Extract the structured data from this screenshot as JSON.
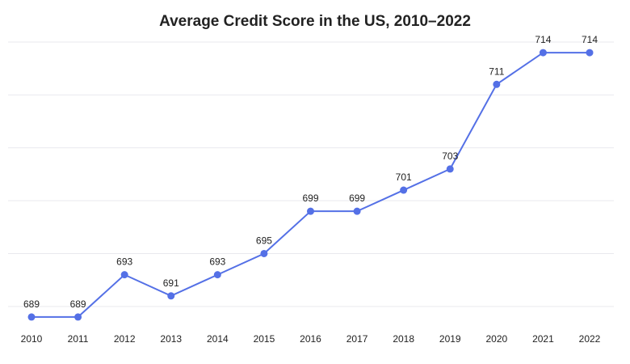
{
  "chart_data": {
    "type": "line",
    "title": "Average Credit Score in the US, 2010–2022",
    "xlabel": "",
    "ylabel": "",
    "categories": [
      "2010",
      "2011",
      "2012",
      "2013",
      "2014",
      "2015",
      "2016",
      "2017",
      "2018",
      "2019",
      "2020",
      "2021",
      "2022"
    ],
    "series": [
      {
        "values": [
          689,
          689,
          693,
          691,
          693,
          695,
          699,
          699,
          701,
          703,
          711,
          714,
          714
        ],
        "color": "#5470e6"
      }
    ],
    "ylim": [
      688,
      715
    ],
    "grid": true,
    "y_tick_labels_shown": false,
    "data_labels": true,
    "legend": "none"
  }
}
